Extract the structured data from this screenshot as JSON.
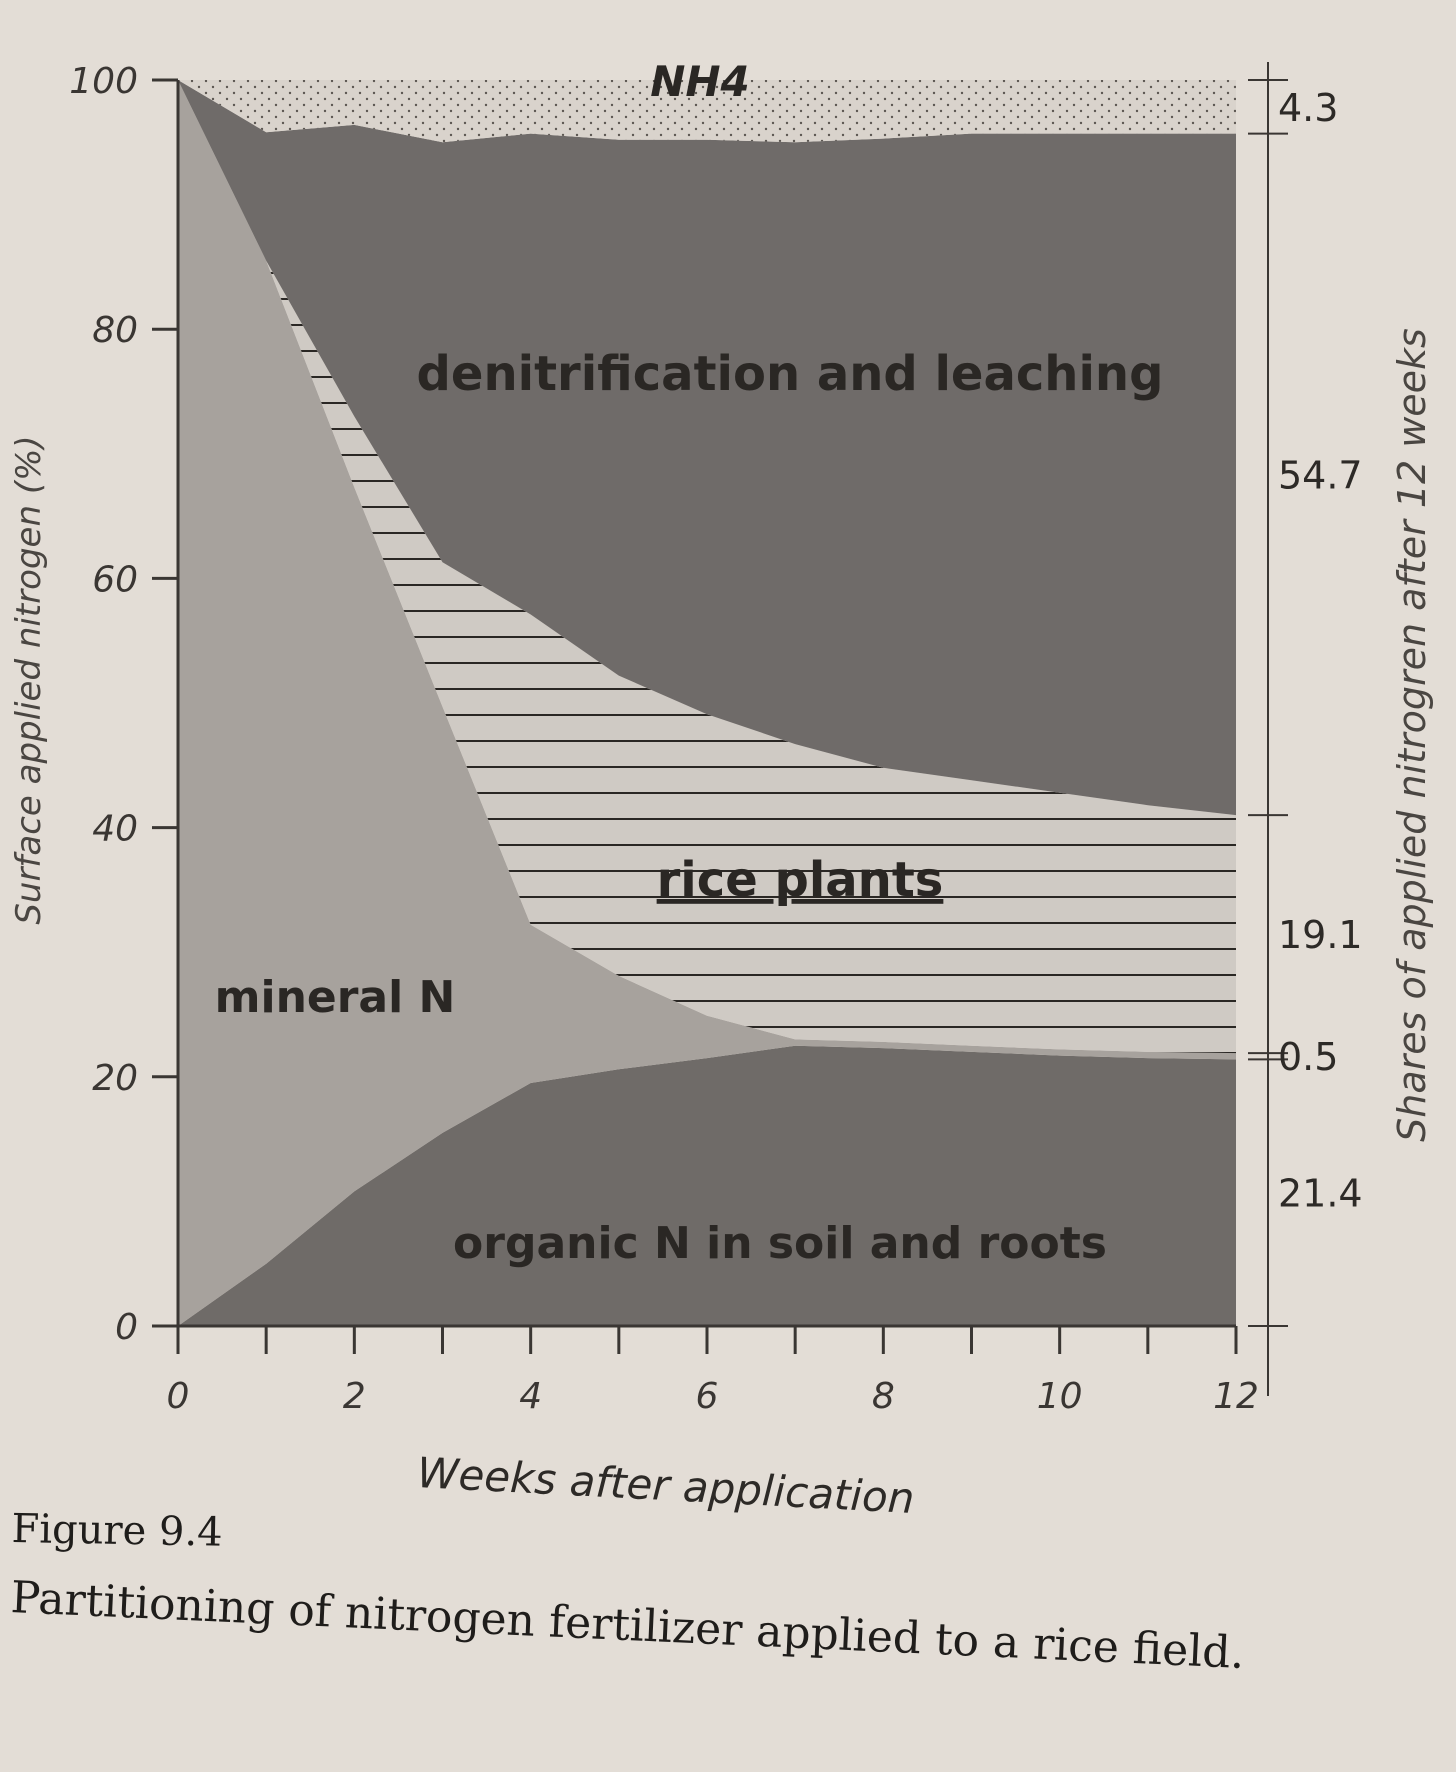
{
  "figure": {
    "number": "Figure 9.4",
    "caption": "Partitioning of nitrogen fertilizer applied to a rice field."
  },
  "chart_data": {
    "type": "area",
    "title": "",
    "xlabel": "Weeks after application",
    "ylabel": "Surface applied nitrogen (%)",
    "y2label": "Shares of applied nitrogren after 12 weeks",
    "xlim": [
      0,
      12
    ],
    "ylim": [
      0,
      100
    ],
    "x_ticks": [
      "0",
      "2",
      "4",
      "6",
      "8",
      "10",
      "12"
    ],
    "y_ticks": [
      "0",
      "20",
      "40",
      "60",
      "80",
      "100"
    ],
    "x": [
      0,
      1,
      2,
      3,
      4,
      5,
      6,
      7,
      8,
      9,
      10,
      11,
      12
    ],
    "series": [
      {
        "name": "organic N in soil and roots",
        "values": [
          0,
          5,
          10.8,
          15.5,
          19.5,
          20.6,
          21.5,
          22.5,
          22.3,
          22.0,
          21.7,
          21.5,
          21.4
        ]
      },
      {
        "name": "mineral N",
        "values": [
          100,
          80.5,
          56.5,
          34.2,
          12.7,
          7.5,
          3.4,
          0.5,
          0.5,
          0.5,
          0.5,
          0.5,
          0.5
        ]
      },
      {
        "name": "rice plants",
        "values": [
          0,
          0,
          5.7,
          11.6,
          24.9,
          24.1,
          24.2,
          23.7,
          22.0,
          21.3,
          20.6,
          19.8,
          19.1
        ]
      },
      {
        "name": "denitrification and leaching",
        "values": [
          0,
          10.3,
          23.4,
          33.7,
          38.6,
          43.0,
          46.1,
          48.3,
          50.5,
          51.9,
          52.9,
          53.9,
          54.7
        ]
      },
      {
        "name": "NH4",
        "values": [
          0,
          4.2,
          3.6,
          5.0,
          4.3,
          4.8,
          4.8,
          5.0,
          4.7,
          4.3,
          4.3,
          4.3,
          4.3
        ]
      }
    ],
    "shares_after_12_weeks": [
      "4.3",
      "54.7",
      "19.1",
      "0.5",
      "21.4"
    ],
    "fills": {
      "organic": "#6f6b68",
      "mineral": "#a7a29d",
      "rice": "#cfcac4",
      "denitrification": "#6f6b69",
      "nh4": "#d9d3cc",
      "background": "#e3ddd6"
    }
  }
}
